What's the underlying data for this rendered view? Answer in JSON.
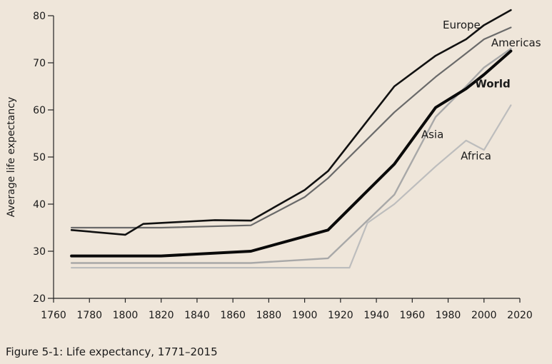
{
  "chart_data": {
    "type": "line",
    "caption": "Figure 5-1: Life expectancy, 1771–2015",
    "ylabel": "Average life expectancy",
    "xlabel": "",
    "xlim": [
      1760,
      2020
    ],
    "ylim": [
      20,
      80
    ],
    "x_ticks": [
      1760,
      1780,
      1800,
      1820,
      1840,
      1860,
      1880,
      1900,
      1920,
      1940,
      1960,
      1980,
      2000,
      2020
    ],
    "y_ticks": [
      20,
      30,
      40,
      50,
      60,
      70,
      80
    ],
    "grid": false,
    "series": [
      {
        "name": "Europe",
        "color": "#111111",
        "points": [
          [
            1770,
            34.5
          ],
          [
            1800,
            33.5
          ],
          [
            1810,
            35.8
          ],
          [
            1850,
            36.6
          ],
          [
            1870,
            36.5
          ],
          [
            1900,
            43
          ],
          [
            1913,
            47
          ],
          [
            1950,
            65
          ],
          [
            1973,
            71.5
          ],
          [
            1990,
            75
          ],
          [
            2000,
            78
          ],
          [
            2015,
            81.2
          ]
        ]
      },
      {
        "name": "Americas",
        "color": "#6a6a6a",
        "points": [
          [
            1770,
            35
          ],
          [
            1820,
            35
          ],
          [
            1870,
            35.5
          ],
          [
            1900,
            41.5
          ],
          [
            1913,
            45.5
          ],
          [
            1950,
            59.5
          ],
          [
            1973,
            67
          ],
          [
            1990,
            72
          ],
          [
            2000,
            75
          ],
          [
            2015,
            77.5
          ]
        ]
      },
      {
        "name": "World",
        "color": "#0a0a0a",
        "points": [
          [
            1770,
            29
          ],
          [
            1820,
            29
          ],
          [
            1870,
            30
          ],
          [
            1913,
            34.5
          ],
          [
            1950,
            48.5
          ],
          [
            1973,
            60.5
          ],
          [
            1990,
            64.5
          ],
          [
            2000,
            67.5
          ],
          [
            2015,
            72.5
          ]
        ]
      },
      {
        "name": "Asia",
        "color": "#a8a8a8",
        "points": [
          [
            1770,
            27.5
          ],
          [
            1820,
            27.5
          ],
          [
            1870,
            27.5
          ],
          [
            1913,
            28.5
          ],
          [
            1950,
            42
          ],
          [
            1973,
            58.5
          ],
          [
            1990,
            65
          ],
          [
            2000,
            69
          ],
          [
            2015,
            73
          ]
        ]
      },
      {
        "name": "Africa",
        "color": "#bdbdbd",
        "points": [
          [
            1770,
            26.5
          ],
          [
            1820,
            26.5
          ],
          [
            1870,
            26.5
          ],
          [
            1925,
            26.5
          ],
          [
            1935,
            36
          ],
          [
            1950,
            40
          ],
          [
            1973,
            48
          ],
          [
            1990,
            53.5
          ],
          [
            2000,
            51.5
          ],
          [
            2015,
            61
          ]
        ]
      }
    ]
  }
}
